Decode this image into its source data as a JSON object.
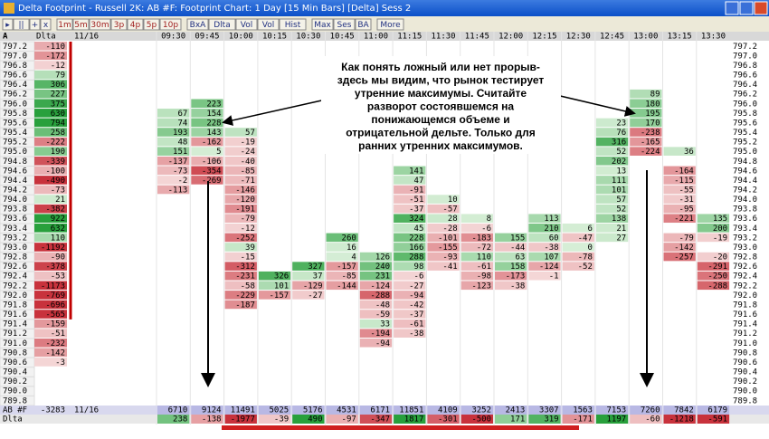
{
  "window": {
    "title": "Delta Footprint - Russell 2K: AB #F: Footprint Chart: 1 Day [15 Min Bars] [Delta] Sess 2"
  },
  "toolbar": {
    "groups": [
      [
        "▸",
        "||",
        "+",
        "x"
      ],
      [
        "1m",
        "5m",
        "30m",
        "3p",
        "4p",
        "5p",
        "10p"
      ],
      [
        "BxA",
        "Dlta",
        "Vol",
        "Vol",
        "Hist"
      ],
      [
        "Max",
        "Ses",
        "BA"
      ],
      [
        "More"
      ]
    ]
  },
  "header": {
    "corner": "A",
    "delta": "Dlta",
    "date": "11/16",
    "times": [
      "09:30",
      "09:45",
      "10:00",
      "10:15",
      "10:30",
      "10:45",
      "11:00",
      "11:15",
      "11:30",
      "11:45",
      "12:00",
      "12:15",
      "12:30",
      "12:45",
      "13:00",
      "13:15",
      "13:30"
    ]
  },
  "prices": [
    "797.2",
    "797.0",
    "796.8",
    "796.6",
    "796.4",
    "796.2",
    "796.0",
    "795.8",
    "795.6",
    "795.4",
    "795.2",
    "795.0",
    "794.8",
    "794.6",
    "794.4",
    "794.2",
    "794.0",
    "793.8",
    "793.6",
    "793.4",
    "793.2",
    "793.0",
    "792.8",
    "792.6",
    "792.4",
    "792.2",
    "792.0",
    "791.8",
    "791.6",
    "791.4",
    "791.2",
    "791.0",
    "790.8",
    "790.6",
    "790.4",
    "790.2",
    "790.0",
    "789.8"
  ],
  "profile_delta": [
    -110,
    -172,
    -12,
    79,
    306,
    227,
    375,
    630,
    794,
    258,
    -222,
    190,
    -339,
    -100,
    -490,
    -73,
    21,
    -382,
    922,
    632,
    110,
    -1192,
    -90,
    -378,
    -53,
    -1173,
    -769,
    -696,
    -565,
    -159,
    -51,
    -232,
    -142,
    -3,
    null,
    null,
    null,
    null
  ],
  "columns": [
    [
      null,
      null,
      null,
      null,
      null,
      null,
      null,
      67,
      74,
      193,
      48,
      151,
      -137,
      -73,
      -2,
      -113,
      null,
      null,
      null,
      null,
      null,
      null,
      null,
      null,
      null,
      null,
      null,
      null,
      null,
      null,
      null,
      null,
      null,
      null,
      null,
      null,
      null,
      null
    ],
    [
      null,
      null,
      null,
      null,
      null,
      null,
      223,
      154,
      228,
      143,
      -162,
      5,
      -106,
      -354,
      -269,
      null,
      null,
      null,
      null,
      null,
      null,
      null,
      null,
      null,
      null,
      null,
      null,
      null,
      null,
      null,
      null,
      null,
      null,
      null,
      null,
      null,
      null,
      null
    ],
    [
      null,
      null,
      null,
      null,
      null,
      null,
      null,
      null,
      null,
      57,
      -19,
      -24,
      -40,
      -85,
      -71,
      -146,
      -120,
      -191,
      -79,
      -12,
      -252,
      39,
      -15,
      -312,
      -231,
      -58,
      -229,
      -187,
      null,
      null,
      null,
      null,
      null,
      null,
      null,
      null,
      null,
      null
    ],
    [
      null,
      null,
      null,
      null,
      null,
      null,
      null,
      null,
      null,
      null,
      null,
      null,
      null,
      null,
      null,
      null,
      null,
      null,
      null,
      null,
      null,
      null,
      null,
      null,
      326,
      101,
      -157,
      null,
      null,
      null,
      null,
      null,
      null,
      null,
      null,
      null,
      null,
      null
    ],
    [
      null,
      null,
      null,
      null,
      null,
      null,
      null,
      null,
      null,
      null,
      null,
      null,
      null,
      null,
      null,
      null,
      null,
      null,
      null,
      null,
      null,
      null,
      null,
      327,
      37,
      -129,
      -27,
      null,
      null,
      null,
      null,
      null,
      null,
      null,
      null,
      null,
      null,
      null
    ],
    [
      null,
      null,
      null,
      null,
      null,
      null,
      null,
      null,
      null,
      null,
      null,
      null,
      null,
      null,
      null,
      null,
      null,
      null,
      null,
      null,
      260,
      16,
      4,
      -157,
      -85,
      -144,
      null,
      null,
      null,
      null,
      null,
      null,
      null,
      null,
      null,
      null,
      null,
      null
    ],
    [
      null,
      null,
      null,
      null,
      null,
      null,
      null,
      null,
      null,
      null,
      null,
      null,
      null,
      null,
      null,
      null,
      null,
      null,
      null,
      null,
      null,
      null,
      126,
      240,
      231,
      -124,
      -288,
      -48,
      -59,
      33,
      -194,
      -94,
      null,
      null,
      null,
      null,
      null,
      null
    ],
    [
      null,
      null,
      null,
      null,
      null,
      null,
      null,
      null,
      null,
      null,
      null,
      null,
      null,
      141,
      47,
      -91,
      -51,
      -37,
      324,
      45,
      228,
      166,
      288,
      98,
      -6,
      -27,
      -94,
      -42,
      -37,
      -61,
      -38,
      null,
      null,
      null,
      null,
      null,
      null,
      null
    ],
    [
      null,
      null,
      null,
      null,
      null,
      null,
      null,
      null,
      null,
      null,
      null,
      null,
      null,
      null,
      null,
      null,
      10,
      -57,
      28,
      -28,
      -101,
      -155,
      -93,
      -41,
      null,
      null,
      null,
      null,
      null,
      null,
      null,
      null,
      null,
      null,
      null,
      null,
      null,
      null
    ],
    [
      null,
      null,
      null,
      null,
      null,
      null,
      null,
      null,
      null,
      null,
      null,
      null,
      null,
      null,
      null,
      null,
      null,
      null,
      8,
      -6,
      -183,
      -72,
      110,
      -61,
      -98,
      -123,
      null,
      null,
      null,
      null,
      null,
      null,
      null,
      null,
      null,
      null,
      null,
      null
    ],
    [
      null,
      null,
      null,
      null,
      null,
      null,
      null,
      null,
      null,
      null,
      null,
      null,
      null,
      null,
      null,
      null,
      null,
      null,
      null,
      null,
      155,
      -44,
      63,
      158,
      -173,
      -38,
      null,
      null,
      null,
      null,
      null,
      null,
      null,
      null,
      null,
      null,
      null,
      null
    ],
    [
      null,
      null,
      null,
      null,
      null,
      null,
      null,
      null,
      null,
      null,
      null,
      null,
      null,
      null,
      null,
      null,
      null,
      null,
      113,
      210,
      60,
      -38,
      107,
      -124,
      -1,
      null,
      null,
      null,
      null,
      null,
      null,
      null,
      null,
      null,
      null,
      null,
      null,
      null
    ],
    [
      null,
      null,
      null,
      null,
      null,
      null,
      null,
      null,
      null,
      null,
      null,
      null,
      null,
      null,
      null,
      null,
      null,
      null,
      null,
      6,
      -47,
      0,
      -78,
      -52,
      null,
      null,
      null,
      null,
      null,
      null,
      null,
      null,
      null,
      null,
      null,
      null,
      null,
      null
    ],
    [
      null,
      null,
      null,
      null,
      null,
      null,
      null,
      null,
      23,
      76,
      316,
      52,
      202,
      13,
      111,
      101,
      57,
      52,
      138,
      21,
      27,
      null,
      null,
      null,
      null,
      null,
      null,
      null,
      null,
      null,
      null,
      null,
      null,
      null,
      null,
      null,
      null,
      null
    ],
    [
      null,
      null,
      null,
      null,
      null,
      89,
      180,
      195,
      170,
      -238,
      -165,
      -224,
      null,
      null,
      null,
      null,
      null,
      null,
      null,
      null,
      null,
      null,
      null,
      null,
      null,
      null,
      null,
      null,
      null,
      null,
      null,
      null,
      null,
      null,
      null,
      null,
      null,
      null
    ],
    [
      null,
      null,
      null,
      null,
      null,
      null,
      null,
      null,
      null,
      null,
      null,
      36,
      null,
      -164,
      -115,
      -55,
      -31,
      -95,
      -221,
      null,
      -79,
      -142,
      -257,
      null,
      null,
      null,
      null,
      null,
      null,
      null,
      null,
      null,
      null,
      null,
      null,
      null,
      null,
      null
    ],
    [
      null,
      null,
      null,
      null,
      null,
      null,
      null,
      null,
      null,
      null,
      null,
      null,
      null,
      null,
      null,
      null,
      null,
      null,
      135,
      200,
      -19,
      null,
      -20,
      -291,
      -250,
      -288,
      null,
      null,
      null,
      null,
      null,
      null,
      null,
      null,
      null,
      null,
      null,
      null
    ]
  ],
  "footer": {
    "volume_label": "AB #F",
    "session_delta": -3283,
    "date": "11/16",
    "delta_label": "Dlta",
    "volumes": [
      6710,
      9124,
      11491,
      5025,
      5176,
      4531,
      6171,
      11851,
      4109,
      3252,
      2413,
      3307,
      1563,
      7153,
      7260,
      7842,
      6179
    ],
    "deltas": [
      238,
      -138,
      -1977,
      -39,
      490,
      -97,
      -347,
      1817,
      -301,
      -500,
      171,
      319,
      -171,
      1197,
      -60,
      -1218,
      -591
    ]
  },
  "annotation": [
    "Как понять ложный или нет прорыв-",
    "здесь мы видим, что рынок тестирует",
    "утренние максимумы. Считайте",
    "разворот состоявшемся на",
    "понижающемся объеме и",
    "отрицательной дельте. Только для",
    "ранних утренних максимумов."
  ]
}
